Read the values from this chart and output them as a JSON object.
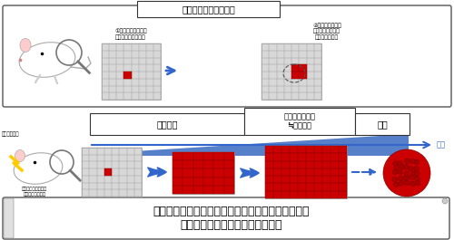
{
  "title": "細胞系譜追跡実験とは",
  "top_box_text1": "①マウス体内の細胞\nが赤色で標識される",
  "top_box_text2": "②標識された細胞\nが増えても同じ赤\n色で標識される",
  "timeline_label1": "正常組織",
  "timeline_label2": "クローン性増殖\n≒がんの芽",
  "timeline_label3": "がん",
  "timeline_arrow_label": "時間",
  "radiation_label": "放射線被ばく",
  "cell_label": "被ばくしてきたがん\nのもとになる細胞",
  "bottom_text": "被ばくした細胞が増殖してがんになるまでの過程を\n追跡することを可能にする実験系",
  "bg_color": "#ffffff",
  "red_color": "#cc0000",
  "blue_arrow_color": "#3366cc",
  "blue_bar_color": "#4472c4",
  "text_color": "#000000"
}
